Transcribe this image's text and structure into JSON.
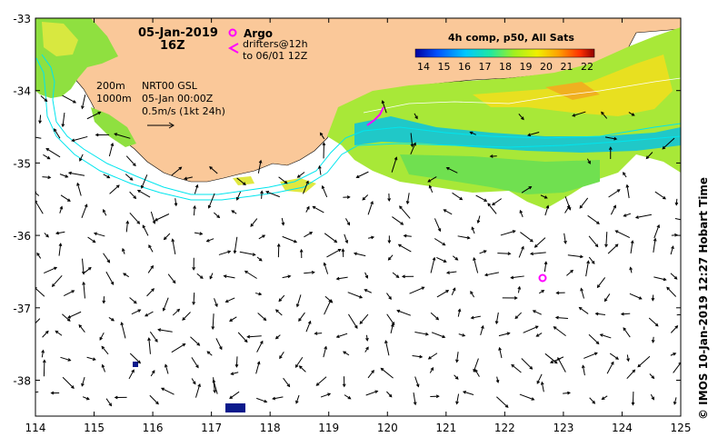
{
  "header": {
    "date": "05-Jan-2019",
    "time": "16Z"
  },
  "legend": {
    "argo_label": "Argo",
    "drifters_line1": "drifters@12h",
    "drifters_line2": "to 06/01 12Z",
    "argo_color": "#ff00ff"
  },
  "contours": {
    "label_200": "200m",
    "label_1000": "1000m"
  },
  "currents_info": {
    "line1": "NRT00 GSL",
    "line2": "05-Jan 00:00Z",
    "line3": "0.5m/s (1kt 24h)"
  },
  "colorbar": {
    "title": "4h comp, p50, All Sats",
    "ticks": [
      "14",
      "15",
      "16",
      "17",
      "18",
      "19",
      "20",
      "21",
      "22"
    ]
  },
  "axes": {
    "lon_ticks": [
      "114",
      "115",
      "116",
      "117",
      "118",
      "119",
      "120",
      "121",
      "122",
      "123",
      "124",
      "125"
    ],
    "lat_ticks": [
      "-33",
      "-34",
      "-35",
      "-36",
      "-37",
      "-38"
    ]
  },
  "credit": "© IMOS 10-Jan-2019 12:27 Hobart Time",
  "colors": {
    "land": "#fac899",
    "ocean": "#ffffff",
    "contour": "#00e5ee",
    "argo": "#ff00ff"
  }
}
